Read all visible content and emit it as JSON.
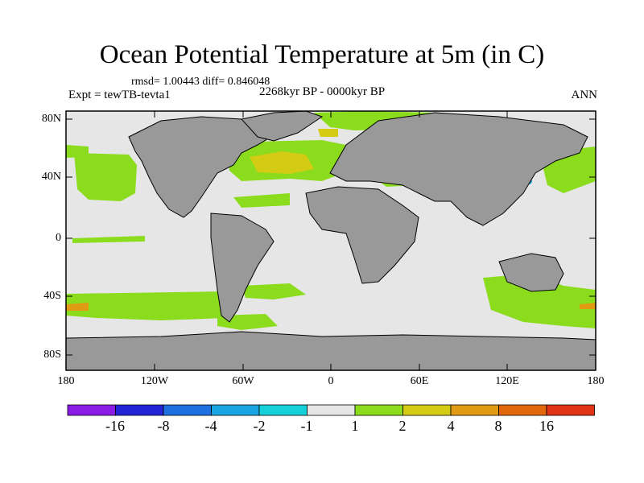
{
  "plot": {
    "title": "Ocean Potential Temperature at 5m (in C)",
    "stats": "rmsd= 1.00443 diff= 0.846048",
    "experiment": "Expt = tewTB-tevta1",
    "period": "2268kyr BP - 0000kyr BP",
    "season": "ANN"
  },
  "axes": {
    "lat_labels": [
      "80N",
      "40N",
      "0",
      "40S",
      "80S"
    ],
    "lon_labels": [
      "180",
      "120W",
      "60W",
      "0",
      "60E",
      "120E",
      "180"
    ]
  },
  "colorbar": {
    "levels": [
      "-16",
      "-8",
      "-4",
      "-2",
      "-1",
      "1",
      "2",
      "4",
      "8",
      "16"
    ],
    "colors": [
      "#8a1ce6",
      "#2424d6",
      "#1e6fe0",
      "#18a4e0",
      "#14d0d8",
      "#e6e6e6",
      "#8cdc1e",
      "#d4cc14",
      "#e09a14",
      "#e2660c",
      "#e03214"
    ]
  },
  "legend_colors": {
    "land": "#999999",
    "ocean_small_change": "#e6e6e6",
    "frame": "#000000"
  }
}
